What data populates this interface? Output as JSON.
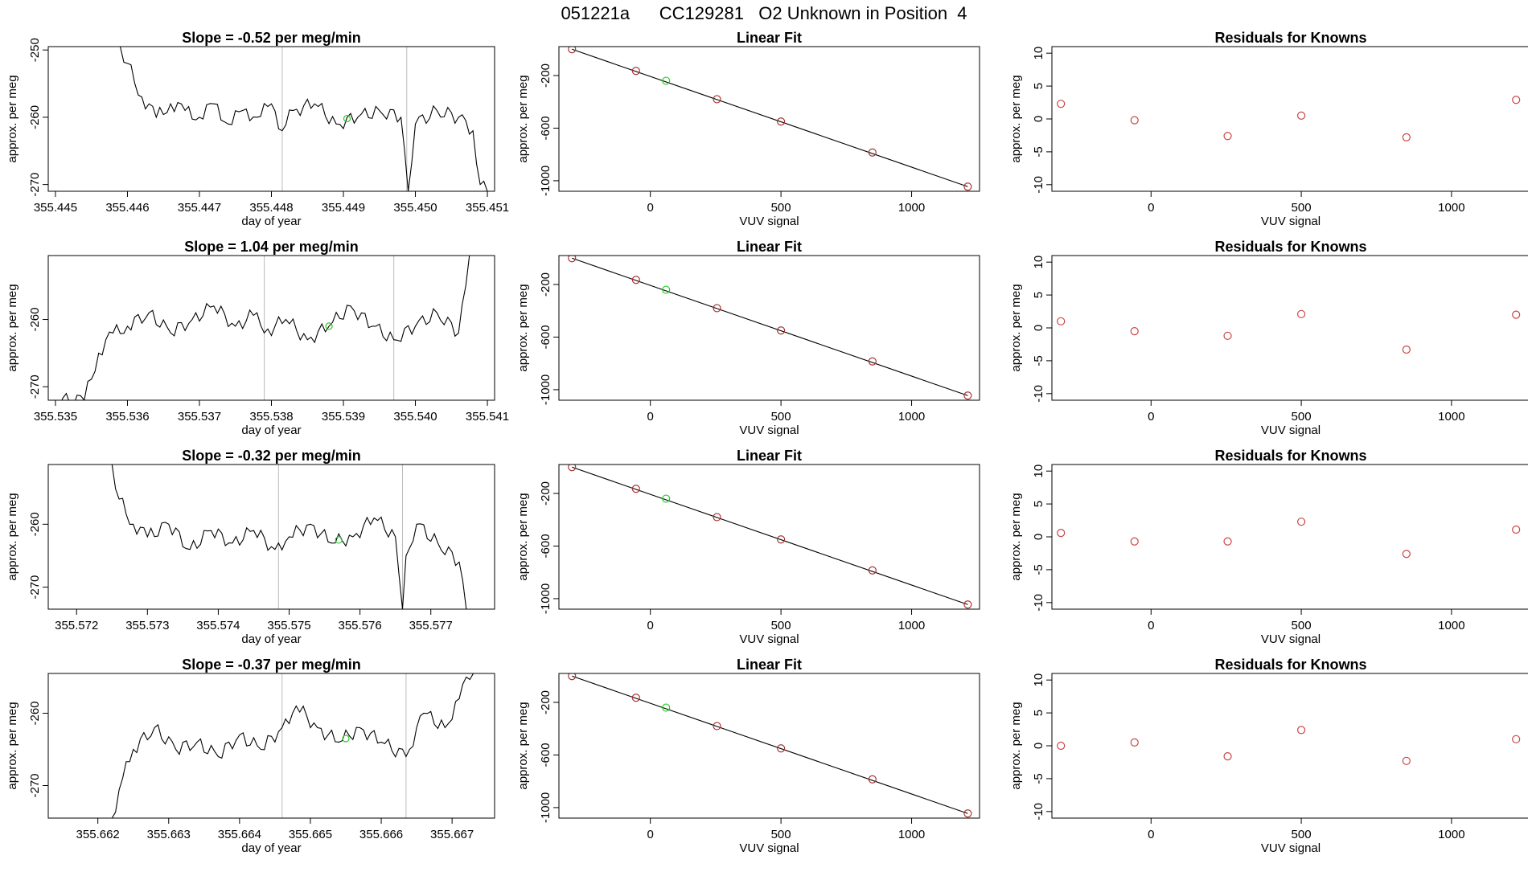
{
  "page_title": "051221a      CC129281   O2 Unknown in Position  4",
  "colors": {
    "trace": "#000000",
    "highlight": "#22cc22",
    "residual": "#cc4444",
    "fit_points": "#aa3333",
    "marker_line": "#bbbbbb",
    "axis": "#000000"
  },
  "chart_data": [
    {
      "type": "line",
      "title": "Slope =  -0.52  per meg/min",
      "xlabel": "day of year",
      "ylabel": "approx. per meg",
      "xlim": [
        355.4449,
        355.4511
      ],
      "ylim": [
        -271,
        -249.5
      ],
      "xticks": [
        "355.445",
        "355.446",
        "355.447",
        "355.448",
        "355.449",
        "355.450",
        "355.451"
      ],
      "yticks": [
        "-250",
        "-260",
        "-270"
      ],
      "markers": [
        355.44815,
        355.44988
      ],
      "highlight_point": [
        355.44905,
        -260.2
      ],
      "series": [
        {
          "name": "trace",
          "x": [
            355.4459,
            355.446,
            355.4462,
            355.4464,
            355.4466,
            355.4468,
            355.447,
            355.4472,
            355.4474,
            355.4476,
            355.4478,
            355.448,
            355.44815,
            355.4483,
            355.4486,
            355.4489,
            355.4492,
            355.4495,
            355.4498,
            355.4499,
            355.45,
            355.4503,
            355.4506,
            355.4508,
            355.4509,
            355.451
          ],
          "y": [
            -249.5,
            -252,
            -257,
            -260,
            -258,
            -259,
            -260,
            -258,
            -261,
            -259,
            -260,
            -258,
            -262,
            -259,
            -258,
            -261,
            -260,
            -259,
            -260,
            -271,
            -261,
            -259,
            -260,
            -262,
            -270,
            -271
          ]
        }
      ]
    },
    {
      "type": "scatter",
      "title": "Linear Fit",
      "xlabel": "VUV signal",
      "ylabel": "approx. per meg",
      "xlim": [
        -350,
        1260
      ],
      "ylim": [
        -1080,
        20
      ],
      "xticks": [
        "0",
        "500",
        "1000"
      ],
      "xtick_values": [
        0,
        500,
        1000
      ],
      "yticks": [
        "-200",
        "-600",
        "-1000"
      ],
      "ytick_values": [
        -200,
        -600,
        -1000
      ],
      "fit_line": [
        [
          -300,
          0
        ],
        [
          1215,
          -1045
        ]
      ],
      "points": [
        [
          -300,
          0
        ],
        [
          -55,
          -165
        ],
        [
          255,
          -380
        ],
        [
          500,
          -550
        ],
        [
          850,
          -785
        ],
        [
          1215,
          -1045
        ]
      ],
      "highlight_point": [
        60,
        -240
      ]
    },
    {
      "type": "scatter",
      "title": "Residuals for Knowns",
      "xlabel": "VUV signal",
      "ylabel": "approx. per meg",
      "xlim": [
        -330,
        1260
      ],
      "ylim": [
        -11,
        11
      ],
      "xticks": [
        "0",
        "500",
        "1000"
      ],
      "xtick_values": [
        0,
        500,
        1000
      ],
      "yticks": [
        "10",
        "5",
        "0",
        "-5",
        "-10"
      ],
      "ytick_values": [
        10,
        5,
        0,
        -5,
        -10
      ],
      "points": [
        [
          -300,
          2.3
        ],
        [
          -55,
          -0.2
        ],
        [
          255,
          -2.6
        ],
        [
          500,
          0.5
        ],
        [
          850,
          -2.8
        ],
        [
          1215,
          2.9
        ]
      ]
    },
    {
      "type": "line",
      "title": "Slope =  1.04  per meg/min",
      "xlabel": "day of year",
      "ylabel": "approx. per meg",
      "xlim": [
        355.5349,
        355.5411
      ],
      "ylim": [
        -272,
        -250.5
      ],
      "xticks": [
        "355.535",
        "355.536",
        "355.537",
        "355.538",
        "355.539",
        "355.540",
        "355.541"
      ],
      "yticks": [
        "-260",
        "-270"
      ],
      "markers": [
        355.5379,
        355.5397
      ],
      "highlight_point": [
        355.5388,
        -261
      ],
      "series": [
        {
          "name": "trace",
          "x": [
            355.535,
            355.5354,
            355.5356,
            355.5358,
            355.536,
            355.5363,
            355.5366,
            355.5369,
            355.5372,
            355.5375,
            355.5378,
            355.5379,
            355.5382,
            355.5385,
            355.5388,
            355.5391,
            355.5394,
            355.5397,
            355.54,
            355.5403,
            355.5406,
            355.5407,
            355.54075
          ],
          "y": [
            -272,
            -272,
            -265,
            -262,
            -261,
            -259,
            -262,
            -260,
            -258,
            -261,
            -259,
            -262,
            -260,
            -263,
            -261,
            -258,
            -261,
            -263,
            -261,
            -259,
            -262,
            -255,
            -250.5
          ]
        }
      ]
    },
    {
      "type": "scatter",
      "title": "Linear Fit",
      "xlabel": "VUV signal",
      "ylabel": "approx. per meg",
      "xlim": [
        -350,
        1260
      ],
      "ylim": [
        -1080,
        20
      ],
      "xticks": [
        "0",
        "500",
        "1000"
      ],
      "xtick_values": [
        0,
        500,
        1000
      ],
      "yticks": [
        "-200",
        "-600",
        "-1000"
      ],
      "ytick_values": [
        -200,
        -600,
        -1000
      ],
      "fit_line": [
        [
          -300,
          0
        ],
        [
          1215,
          -1045
        ]
      ],
      "points": [
        [
          -300,
          0
        ],
        [
          -55,
          -165
        ],
        [
          255,
          -380
        ],
        [
          500,
          -550
        ],
        [
          850,
          -785
        ],
        [
          1215,
          -1045
        ]
      ],
      "highlight_point": [
        60,
        -240
      ]
    },
    {
      "type": "scatter",
      "title": "Residuals for Knowns",
      "xlabel": "VUV signal",
      "ylabel": "approx. per meg",
      "xlim": [
        -330,
        1260
      ],
      "ylim": [
        -11,
        11
      ],
      "xticks": [
        "0",
        "500",
        "1000"
      ],
      "xtick_values": [
        0,
        500,
        1000
      ],
      "yticks": [
        "10",
        "5",
        "0",
        "-5",
        "-10"
      ],
      "ytick_values": [
        10,
        5,
        0,
        -5,
        -10
      ],
      "points": [
        [
          -300,
          1.0
        ],
        [
          -55,
          -0.5
        ],
        [
          255,
          -1.2
        ],
        [
          500,
          2.1
        ],
        [
          850,
          -3.3
        ],
        [
          1215,
          2.0
        ]
      ]
    },
    {
      "type": "line",
      "title": "Slope =  -0.32  per meg/min",
      "xlabel": "day of year",
      "ylabel": "approx. per meg",
      "xlim": [
        355.5716,
        355.5779
      ],
      "ylim": [
        -273.5,
        -250.5
      ],
      "xticks": [
        "355.572",
        "355.573",
        "355.574",
        "355.575",
        "355.576",
        "355.577"
      ],
      "yticks": [
        "-260",
        "-270"
      ],
      "markers": [
        355.57485,
        355.5766
      ],
      "highlight_point": [
        355.5757,
        -262.5
      ],
      "series": [
        {
          "name": "trace",
          "x": [
            355.5725,
            355.5726,
            355.5728,
            355.573,
            355.5733,
            355.5736,
            355.5739,
            355.5742,
            355.5745,
            355.5748,
            355.575,
            355.5753,
            355.5756,
            355.5759,
            355.5762,
            355.5765,
            355.5766,
            355.57665,
            355.5768,
            355.5771,
            355.5774,
            355.5775
          ],
          "y": [
            -250.5,
            -256,
            -260,
            -262,
            -260,
            -264,
            -261,
            -263,
            -261,
            -264,
            -262,
            -260,
            -263,
            -262,
            -259,
            -262,
            -273.5,
            -265,
            -260,
            -263,
            -266,
            -273.5
          ]
        }
      ]
    },
    {
      "type": "scatter",
      "title": "Linear Fit",
      "xlabel": "VUV signal",
      "ylabel": "approx. per meg",
      "xlim": [
        -350,
        1260
      ],
      "ylim": [
        -1080,
        20
      ],
      "xticks": [
        "0",
        "500",
        "1000"
      ],
      "xtick_values": [
        0,
        500,
        1000
      ],
      "yticks": [
        "-200",
        "-600",
        "-1000"
      ],
      "ytick_values": [
        -200,
        -600,
        -1000
      ],
      "fit_line": [
        [
          -300,
          0
        ],
        [
          1215,
          -1045
        ]
      ],
      "points": [
        [
          -300,
          0
        ],
        [
          -55,
          -165
        ],
        [
          255,
          -380
        ],
        [
          500,
          -550
        ],
        [
          850,
          -785
        ],
        [
          1215,
          -1045
        ]
      ],
      "highlight_point": [
        60,
        -240
      ]
    },
    {
      "type": "scatter",
      "title": "Residuals for Knowns",
      "xlabel": "VUV signal",
      "ylabel": "approx. per meg",
      "xlim": [
        -330,
        1260
      ],
      "ylim": [
        -11,
        11
      ],
      "xticks": [
        "0",
        "500",
        "1000"
      ],
      "xtick_values": [
        0,
        500,
        1000
      ],
      "yticks": [
        "10",
        "5",
        "0",
        "-5",
        "-10"
      ],
      "ytick_values": [
        10,
        5,
        0,
        -5,
        -10
      ],
      "points": [
        [
          -300,
          0.6
        ],
        [
          -55,
          -0.7
        ],
        [
          255,
          -0.7
        ],
        [
          500,
          2.3
        ],
        [
          850,
          -2.6
        ],
        [
          1215,
          1.1
        ]
      ]
    },
    {
      "type": "line",
      "title": "Slope =  -0.37  per meg/min",
      "xlabel": "day of year",
      "ylabel": "approx. per meg",
      "xlim": [
        355.6613,
        355.6676
      ],
      "ylim": [
        -274.5,
        -254.5
      ],
      "xticks": [
        "355.662",
        "355.663",
        "355.664",
        "355.665",
        "355.666",
        "355.667"
      ],
      "yticks": [
        "-260",
        "-270"
      ],
      "markers": [
        355.6646,
        355.66635
      ],
      "highlight_point": [
        355.6655,
        -263.5
      ],
      "series": [
        {
          "name": "trace",
          "x": [
            355.6622,
            355.66235,
            355.6625,
            355.6628,
            355.6631,
            355.6634,
            355.6637,
            355.664,
            355.6643,
            355.6646,
            355.6648,
            355.6651,
            355.6654,
            355.6657,
            355.666,
            355.66635,
            355.6666,
            355.6669,
            355.6671,
            355.6672,
            355.6673
          ],
          "y": [
            -274.5,
            -269,
            -265,
            -262,
            -265,
            -264,
            -266,
            -263,
            -265,
            -262,
            -259,
            -262,
            -264,
            -262,
            -264,
            -266,
            -260,
            -262,
            -258,
            -255,
            -254.5
          ]
        }
      ]
    },
    {
      "type": "scatter",
      "title": "Linear Fit",
      "xlabel": "VUV signal",
      "ylabel": "approx. per meg",
      "xlim": [
        -350,
        1260
      ],
      "ylim": [
        -1080,
        20
      ],
      "xticks": [
        "0",
        "500",
        "1000"
      ],
      "xtick_values": [
        0,
        500,
        1000
      ],
      "yticks": [
        "-200",
        "-600",
        "-1000"
      ],
      "ytick_values": [
        -200,
        -600,
        -1000
      ],
      "fit_line": [
        [
          -300,
          0
        ],
        [
          1215,
          -1045
        ]
      ],
      "points": [
        [
          -300,
          0
        ],
        [
          -55,
          -165
        ],
        [
          255,
          -380
        ],
        [
          500,
          -550
        ],
        [
          850,
          -785
        ],
        [
          1215,
          -1045
        ]
      ],
      "highlight_point": [
        60,
        -240
      ]
    },
    {
      "type": "scatter",
      "title": "Residuals for Knowns",
      "xlabel": "VUV signal",
      "ylabel": "approx. per meg",
      "xlim": [
        -330,
        1260
      ],
      "ylim": [
        -11,
        11
      ],
      "xticks": [
        "0",
        "500",
        "1000"
      ],
      "xtick_values": [
        0,
        500,
        1000
      ],
      "yticks": [
        "10",
        "5",
        "0",
        "-5",
        "-10"
      ],
      "ytick_values": [
        10,
        5,
        0,
        -5,
        -10
      ],
      "points": [
        [
          -300,
          0.0
        ],
        [
          -55,
          0.5
        ],
        [
          255,
          -1.6
        ],
        [
          500,
          2.4
        ],
        [
          850,
          -2.3
        ],
        [
          1215,
          1.0
        ]
      ]
    }
  ]
}
